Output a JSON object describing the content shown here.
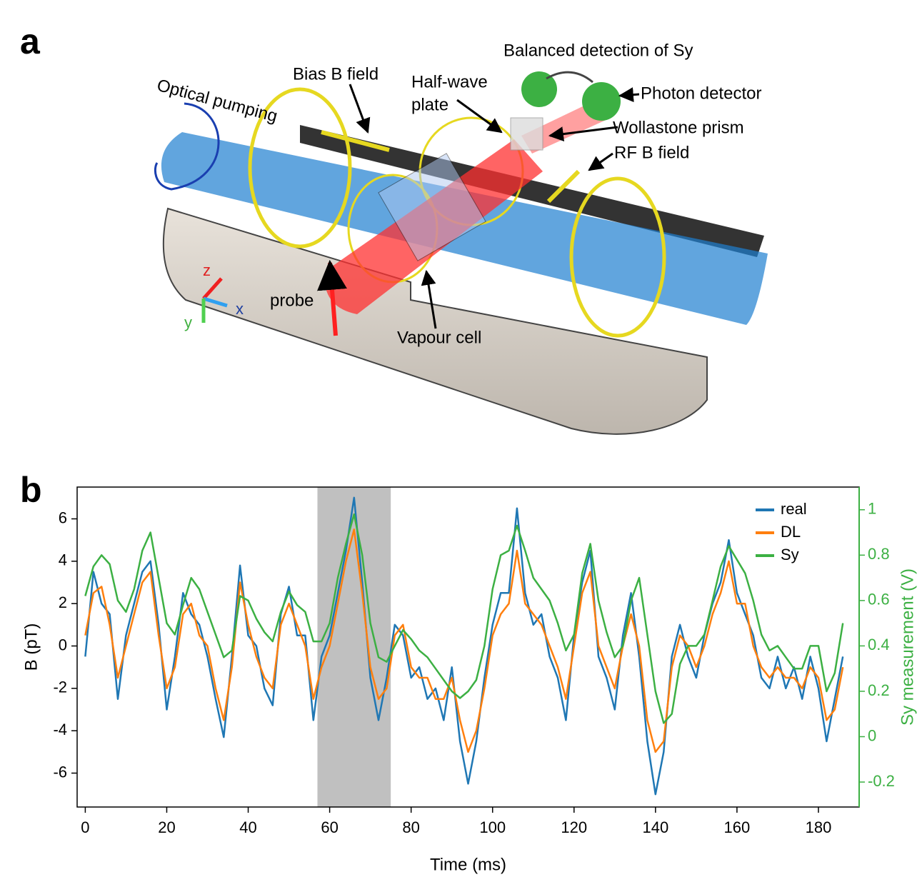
{
  "figure": {
    "panel_a_label": "a",
    "panel_b_label": "b",
    "illustration_labels": {
      "optical_pumping": "Optical pumping",
      "bias_field": "Bias B field",
      "half_wave_1": "Half-wave",
      "half_wave_2": "plate",
      "balanced_detection": "Balanced detection of Sy",
      "photon_detector": "Photon detector",
      "wollastone_prism": "Wollastone prism",
      "rf_field": "RF B field",
      "probe": "probe",
      "vapour_cell": "Vapour cell",
      "axis_z": "z",
      "axis_x": "x",
      "axis_y": "y"
    }
  },
  "chart_data": {
    "type": "line",
    "xlabel": "Time (ms)",
    "ylabel": "B (pT)",
    "y2label": "Sy measurement (V)",
    "x": [
      0,
      2,
      4,
      6,
      8,
      10,
      12,
      14,
      16,
      18,
      20,
      22,
      24,
      26,
      28,
      30,
      32,
      34,
      36,
      38,
      40,
      42,
      44,
      46,
      48,
      50,
      52,
      54,
      56,
      58,
      60,
      62,
      64,
      66,
      68,
      70,
      72,
      74,
      76,
      78,
      80,
      82,
      84,
      86,
      88,
      90,
      92,
      94,
      96,
      98,
      100,
      102,
      104,
      106,
      108,
      110,
      112,
      114,
      116,
      118,
      120,
      122,
      124,
      126,
      128,
      130,
      132,
      134,
      136,
      138,
      140,
      142,
      144,
      146,
      148,
      150,
      152,
      154,
      156,
      158,
      160,
      162,
      164,
      166,
      168,
      170,
      172,
      174,
      176,
      178,
      180,
      182,
      184,
      186
    ],
    "series": [
      {
        "name": "real",
        "color": "#1f77b4",
        "values": [
          -0.5,
          3.5,
          2,
          1.5,
          -2.5,
          0.5,
          2,
          3.5,
          4,
          1,
          -3,
          -0.5,
          2.5,
          1.5,
          1,
          -0.5,
          -2.5,
          -4.3,
          -0.5,
          3.8,
          0.5,
          0,
          -2,
          -2.8,
          1.5,
          2.8,
          0.5,
          0.5,
          -3.5,
          -0.5,
          0.5,
          2.5,
          4.5,
          7,
          3,
          -1.5,
          -3.5,
          -1.5,
          1,
          0.5,
          -1.5,
          -1,
          -2.5,
          -2,
          -3.5,
          -1,
          -4.5,
          -6.5,
          -4.5,
          -1.5,
          1,
          2.5,
          2.5,
          6.5,
          2.5,
          1,
          1.5,
          -0.5,
          -1.5,
          -3.5,
          0.5,
          3,
          4.5,
          -0.5,
          -1.5,
          -3,
          0.5,
          2.5,
          -0.5,
          -4.5,
          -7,
          -5,
          -0.5,
          1,
          -0.5,
          -1.5,
          0.5,
          2,
          3,
          5,
          2.5,
          1.5,
          0.5,
          -1.5,
          -2,
          -0.5,
          -2,
          -1,
          -2.5,
          -0.5,
          -2,
          -4.5,
          -2.5,
          -0.5
        ]
      },
      {
        "name": "DL",
        "color": "#ff7f0e",
        "values": [
          0.5,
          2.5,
          2.8,
          1,
          -1.5,
          0,
          1.5,
          3,
          3.5,
          0.5,
          -2,
          -1,
          1.5,
          2,
          0.5,
          0,
          -2,
          -3.5,
          -1,
          3,
          1,
          -0.5,
          -1.5,
          -2,
          1,
          2,
          1,
          0,
          -2.5,
          -1,
          0,
          2,
          4,
          5.5,
          2.5,
          -1,
          -2.5,
          -2,
          0.5,
          1,
          -1,
          -1.5,
          -1.5,
          -2.5,
          -2.5,
          -1.5,
          -3.5,
          -5,
          -4,
          -2,
          0.5,
          1.5,
          2,
          4.5,
          2,
          1.5,
          1,
          0,
          -1,
          -2.5,
          0,
          2.5,
          3.5,
          0,
          -1,
          -2,
          0,
          1.5,
          0,
          -3.5,
          -5,
          -4.5,
          -1,
          0.5,
          0,
          -1,
          0,
          1.5,
          2.5,
          4,
          2,
          2,
          0,
          -1,
          -1.5,
          -1,
          -1.5,
          -1.5,
          -2,
          -1,
          -1.5,
          -3.5,
          -3,
          -1
        ]
      },
      {
        "name": "Sy",
        "color": "#3cb043",
        "axis": "y2",
        "values": [
          0.62,
          0.75,
          0.8,
          0.76,
          0.6,
          0.55,
          0.65,
          0.82,
          0.9,
          0.7,
          0.5,
          0.45,
          0.58,
          0.7,
          0.65,
          0.55,
          0.45,
          0.35,
          0.38,
          0.62,
          0.6,
          0.52,
          0.46,
          0.42,
          0.55,
          0.64,
          0.58,
          0.55,
          0.42,
          0.42,
          0.5,
          0.7,
          0.85,
          0.98,
          0.8,
          0.5,
          0.35,
          0.33,
          0.4,
          0.47,
          0.43,
          0.38,
          0.35,
          0.3,
          0.25,
          0.2,
          0.17,
          0.2,
          0.25,
          0.4,
          0.65,
          0.8,
          0.82,
          0.93,
          0.82,
          0.7,
          0.65,
          0.6,
          0.5,
          0.38,
          0.45,
          0.72,
          0.85,
          0.6,
          0.46,
          0.35,
          0.4,
          0.6,
          0.7,
          0.45,
          0.2,
          0.06,
          0.1,
          0.32,
          0.4,
          0.4,
          0.45,
          0.6,
          0.75,
          0.84,
          0.78,
          0.72,
          0.6,
          0.45,
          0.38,
          0.4,
          0.35,
          0.3,
          0.3,
          0.4,
          0.4,
          0.2,
          0.28,
          0.5
        ]
      }
    ],
    "shaded_span": [
      57,
      75
    ],
    "shaded_color": "#c0c0c0",
    "xlim": [
      -2,
      190
    ],
    "xticks": [
      0,
      20,
      40,
      60,
      80,
      100,
      120,
      140,
      160,
      180
    ],
    "ylim": [
      -7.6,
      7.5
    ],
    "yticks": [
      -6,
      -4,
      -2,
      0,
      2,
      4,
      6
    ],
    "y2lim": [
      -0.31,
      1.1
    ],
    "y2ticks": [
      -0.2,
      0,
      0.2,
      0.4,
      0.6,
      0.8,
      1
    ],
    "y2color": "#3cb043",
    "legend": "upper right",
    "grid": false
  }
}
